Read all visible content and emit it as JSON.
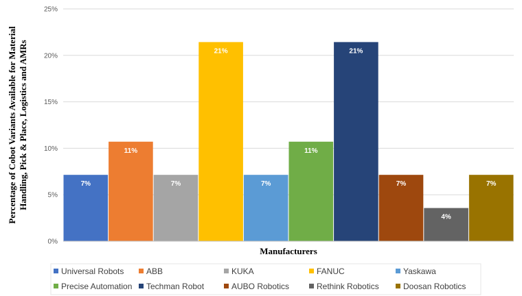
{
  "chart_data": {
    "type": "bar",
    "title": "",
    "xlabel": "Manufacturers",
    "ylabel": "Percentage of Cobot Variants Available for Material Handling, Pick & Place, Logistics and AMRs",
    "ylabel_lines": [
      "Percentage of Cobot Variants Available for Material",
      "Handling, Pick & Place, Logistics and AMRs"
    ],
    "ylim": [
      0,
      25
    ],
    "yticks": [
      0,
      5,
      10,
      15,
      20,
      25
    ],
    "ytick_labels": [
      "0%",
      "5%",
      "10%",
      "15%",
      "20%",
      "25%"
    ],
    "grid": true,
    "legend_position": "bottom",
    "categories": [
      "Universal Robots",
      "ABB",
      "KUKA",
      "FANUC",
      "Yaskawa",
      "Precise Automation",
      "Techman Robot",
      "AUBO Robotics",
      "Rethink Robotics",
      "Doosan Robotics"
    ],
    "values": [
      7.14,
      10.71,
      7.14,
      21.43,
      7.14,
      10.71,
      21.43,
      7.14,
      3.57,
      7.14
    ],
    "data_labels": [
      "7%",
      "11%",
      "7%",
      "21%",
      "7%",
      "11%",
      "21%",
      "7%",
      "4%",
      "7%"
    ],
    "colors": [
      "#4472c4",
      "#ed7d31",
      "#a5a5a5",
      "#ffc000",
      "#5b9bd5",
      "#70ad47",
      "#264478",
      "#9e480e",
      "#636363",
      "#997300"
    ]
  }
}
